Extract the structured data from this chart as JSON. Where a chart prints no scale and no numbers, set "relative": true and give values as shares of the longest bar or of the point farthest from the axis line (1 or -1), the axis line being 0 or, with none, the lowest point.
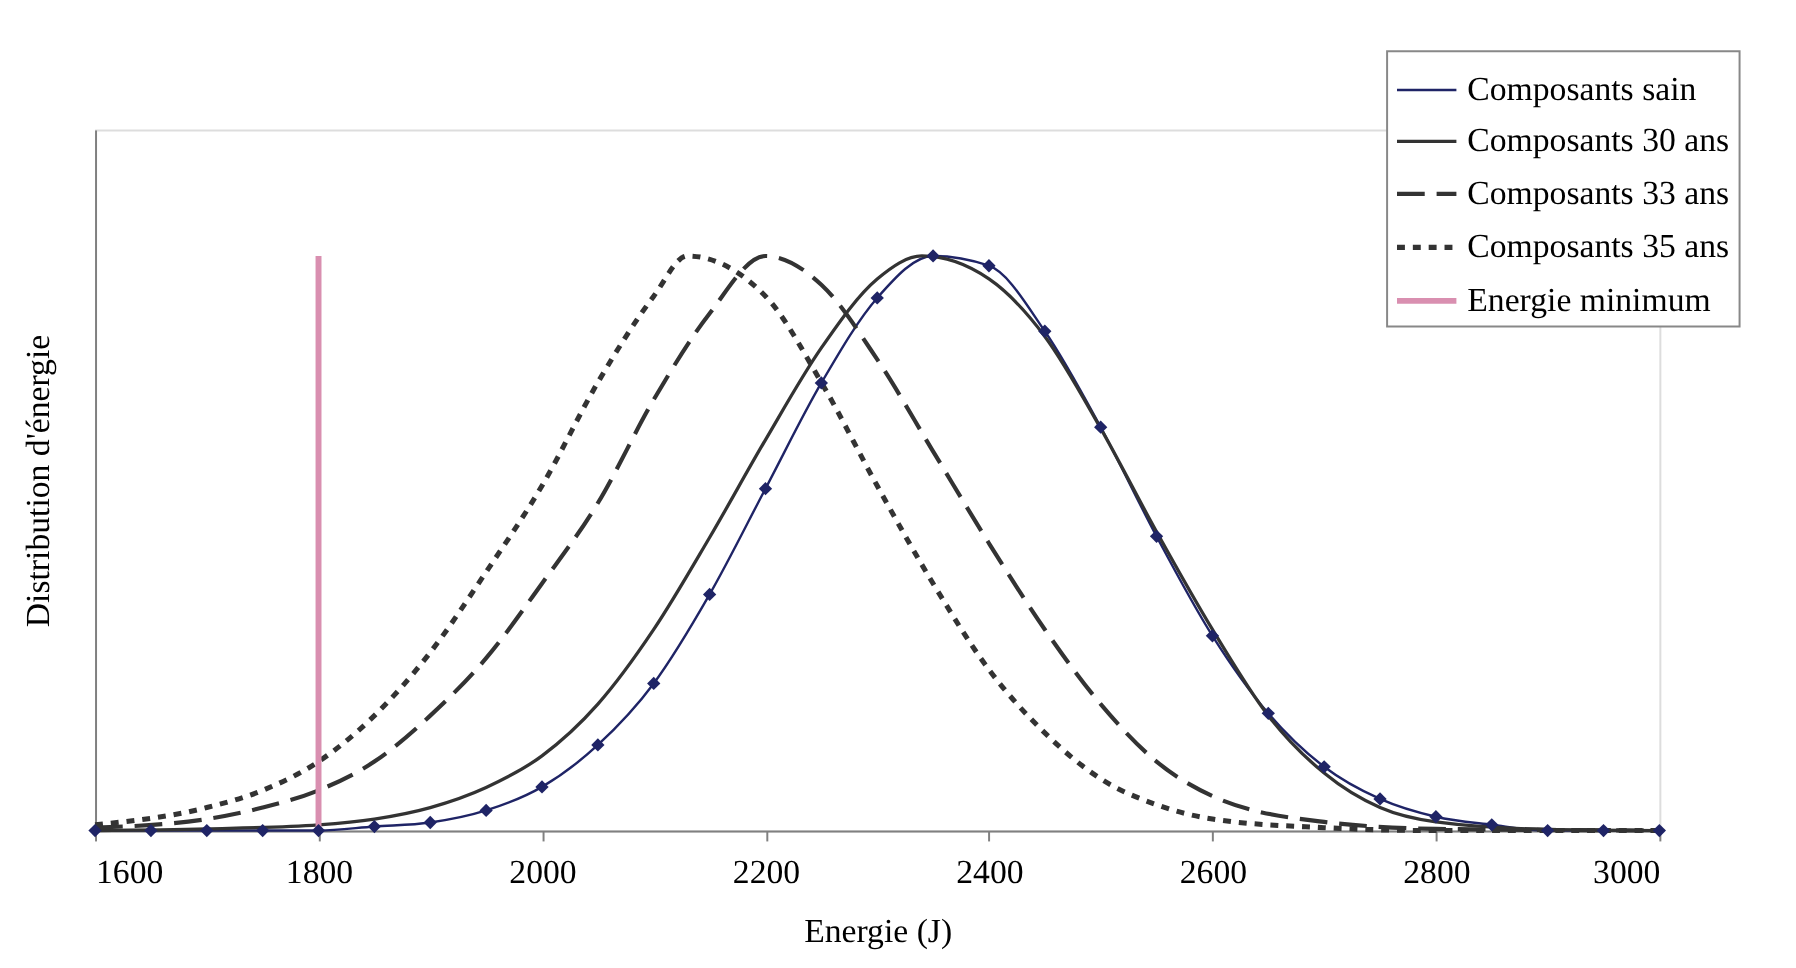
{
  "chart_data": {
    "type": "line",
    "relative": true,
    "xlabel": "Energie (J)",
    "ylabel": "Distribution d'énergie",
    "xlim": [
      1600,
      3000
    ],
    "xticks": [
      1600,
      1800,
      2000,
      2200,
      2400,
      2600,
      2800,
      3000
    ],
    "grid": false,
    "legend": "top right",
    "tick_labels": "x",
    "series": [
      {
        "name": "Composants sain",
        "color": "#1f2466",
        "marker": "diamond",
        "line_style": "solid",
        "x": [
          1600,
          1650,
          1700,
          1750,
          1800,
          1850,
          1900,
          1950,
          2000,
          2050,
          2100,
          2150,
          2200,
          2250,
          2300,
          2350,
          2400,
          2450,
          2500,
          2550,
          2600,
          2650,
          2700,
          2750,
          2800,
          2850,
          2900,
          2950,
          3000
        ],
        "values": [
          0,
          0,
          0,
          0,
          0,
          0.007,
          0.014,
          0.035,
          0.076,
          0.149,
          0.256,
          0.411,
          0.595,
          0.779,
          0.927,
          1,
          0.983,
          0.869,
          0.702,
          0.512,
          0.339,
          0.204,
          0.111,
          0.055,
          0.024,
          0.01,
          0,
          0,
          0
        ]
      },
      {
        "name": "Composants 30 ans",
        "color": "#333333",
        "line_style": "solid",
        "x": [
          1600,
          1700,
          1800,
          1850,
          1900,
          1950,
          2000,
          2050,
          2100,
          2150,
          2200,
          2250,
          2300,
          2340,
          2400,
          2450,
          2500,
          2550,
          2600,
          2650,
          2700,
          2750,
          2800,
          2900,
          3000
        ],
        "values": [
          0,
          0.003,
          0.01,
          0.02,
          0.04,
          0.075,
          0.13,
          0.22,
          0.35,
          0.51,
          0.68,
          0.84,
          0.96,
          1,
          0.96,
          0.86,
          0.7,
          0.52,
          0.35,
          0.2,
          0.1,
          0.04,
          0.015,
          0.002,
          0
        ]
      },
      {
        "name": "Composants 33 ans",
        "color": "#333333",
        "line_style": "dashed",
        "x": [
          1600,
          1700,
          1750,
          1800,
          1850,
          1900,
          1950,
          2000,
          2050,
          2100,
          2150,
          2200,
          2250,
          2300,
          2350,
          2400,
          2450,
          2500,
          2550,
          2600,
          2700,
          2800,
          3000
        ],
        "values": [
          0.005,
          0.02,
          0.04,
          0.07,
          0.12,
          0.2,
          0.3,
          0.43,
          0.57,
          0.75,
          0.9,
          1,
          0.95,
          0.82,
          0.66,
          0.5,
          0.35,
          0.22,
          0.12,
          0.06,
          0.015,
          0.003,
          0
        ]
      },
      {
        "name": "Composants 35 ans",
        "color": "#333333",
        "line_style": "dotted",
        "x": [
          1600,
          1700,
          1750,
          1800,
          1850,
          1900,
          1950,
          2000,
          2050,
          2100,
          2130,
          2200,
          2250,
          2300,
          2350,
          2400,
          2450,
          2500,
          2550,
          2600,
          2700,
          2800,
          3000
        ],
        "values": [
          0.01,
          0.04,
          0.07,
          0.12,
          0.2,
          0.31,
          0.45,
          0.6,
          0.78,
          0.93,
          1,
          0.93,
          0.78,
          0.6,
          0.43,
          0.28,
          0.17,
          0.09,
          0.045,
          0.02,
          0.005,
          0,
          0
        ]
      },
      {
        "name": "Energie minimum",
        "color": "#d98fb0",
        "line_style": "solid",
        "x": [
          1800,
          1800
        ],
        "values": [
          0,
          1
        ]
      }
    ]
  }
}
